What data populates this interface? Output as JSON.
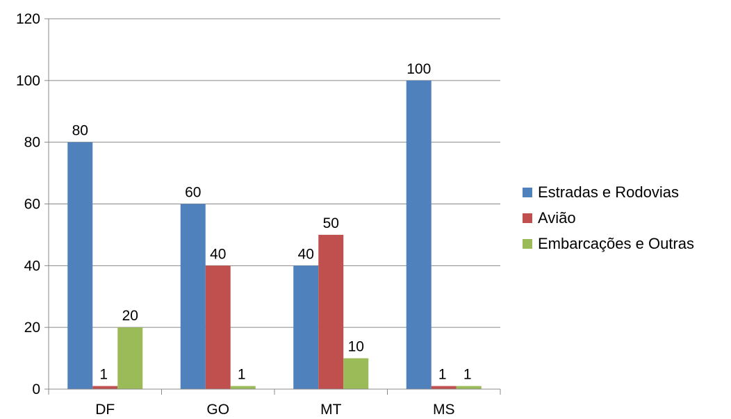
{
  "chart_data": {
    "type": "bar",
    "categories": [
      "DF",
      "GO",
      "MT",
      "MS"
    ],
    "series": [
      {
        "name": "Estradas e Rodovias",
        "values": [
          80,
          60,
          40,
          100
        ],
        "color": "#4F81BD"
      },
      {
        "name": "Avião",
        "values": [
          1,
          40,
          50,
          1
        ],
        "color": "#C0504D"
      },
      {
        "name": "Embarcações e Outras",
        "values": [
          20,
          1,
          10,
          1
        ],
        "color": "#9BBB59"
      }
    ],
    "ylim": [
      0,
      120
    ],
    "yticks": [
      "0",
      "20",
      "40",
      "60",
      "80",
      "100",
      "120"
    ],
    "grid": true,
    "legend_position": "right"
  }
}
